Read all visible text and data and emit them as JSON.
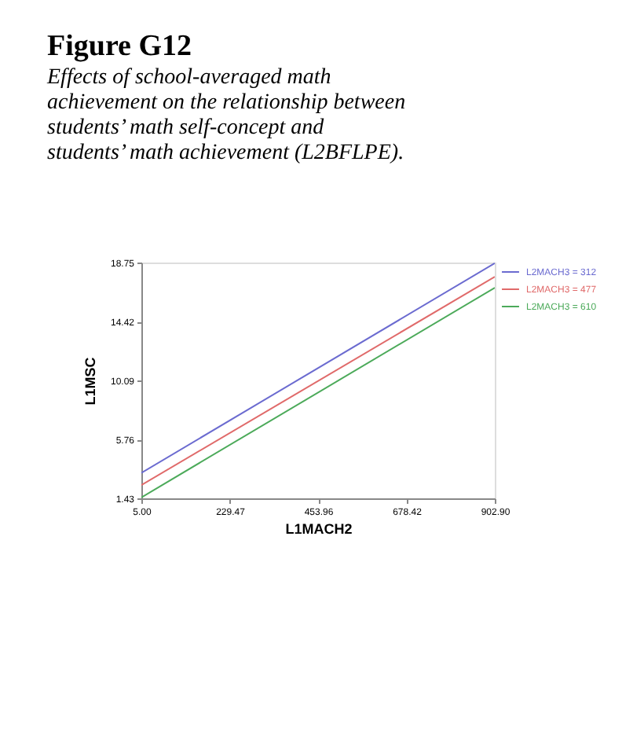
{
  "chart_data": {
    "type": "line",
    "title": "Figure G12",
    "subtitle": "Effects of school-averaged math achievement on the relationship between students’ math self-concept and students’ math achievement (L2BFLPE).",
    "xlabel": "L1MACH2",
    "ylabel": "L1MSC",
    "xlim": [
      5.0,
      902.9
    ],
    "ylim": [
      1.43,
      18.75
    ],
    "xticks": [
      {
        "value": 5.0,
        "label": "5.00"
      },
      229.47,
      453.96,
      678.42,
      {
        "value": 902.9,
        "label": "902.90"
      }
    ],
    "yticks": [
      1.43,
      5.76,
      10.09,
      14.42,
      18.75
    ],
    "x": [
      5.0,
      902.9
    ],
    "series": [
      {
        "name": "L2MACH3 = 312",
        "color": "#6b6bd0",
        "values": [
          3.3,
          18.7
        ]
      },
      {
        "name": "L2MACH3 = 477",
        "color": "#e06a6a",
        "values": [
          2.4,
          17.7
        ]
      },
      {
        "name": "L2MACH3 = 610",
        "color": "#4caa5a",
        "values": [
          1.5,
          16.9
        ]
      }
    ],
    "legend": "top right",
    "grid": false,
    "marker": "none",
    "line_style": "solid"
  }
}
